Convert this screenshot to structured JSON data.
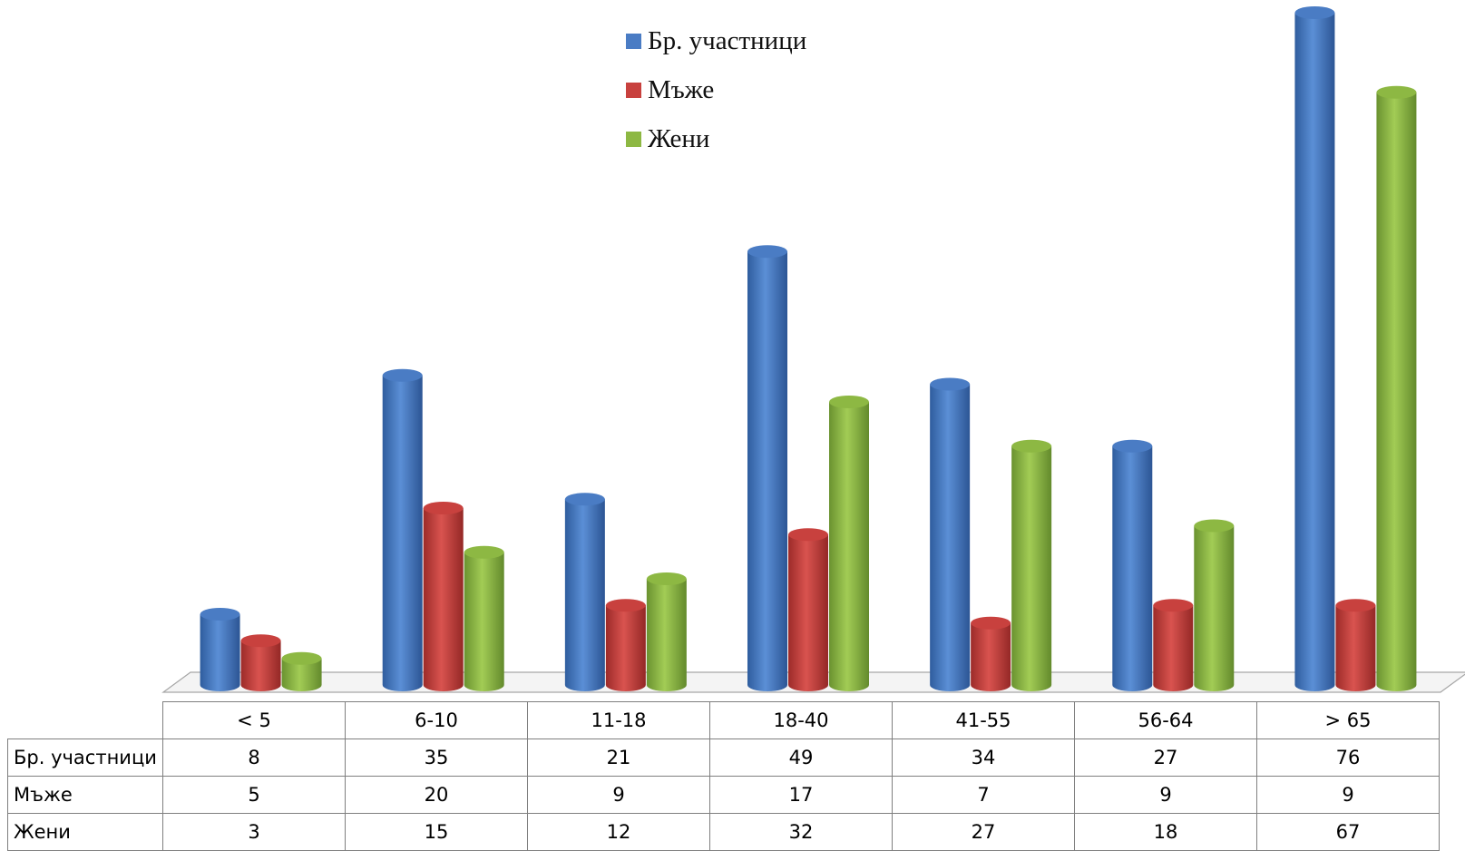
{
  "chart_data": {
    "type": "bar",
    "categories": [
      "< 5",
      "6-10",
      "11-18",
      "18-40",
      "41-55",
      "56-64",
      "> 65"
    ],
    "series": [
      {
        "name": "Бр. участници",
        "values": [
          8,
          35,
          21,
          49,
          34,
          27,
          76
        ],
        "color": "#4a7cc4"
      },
      {
        "name": "Мъже",
        "values": [
          5,
          20,
          9,
          17,
          7,
          9,
          9
        ],
        "color": "#c8413e"
      },
      {
        "name": "Жени",
        "values": [
          3,
          15,
          12,
          32,
          27,
          18,
          67
        ],
        "color": "#8db843"
      }
    ],
    "ylim": [
      0,
      76
    ],
    "legend": "top-center",
    "data_table": true,
    "grid": false
  }
}
